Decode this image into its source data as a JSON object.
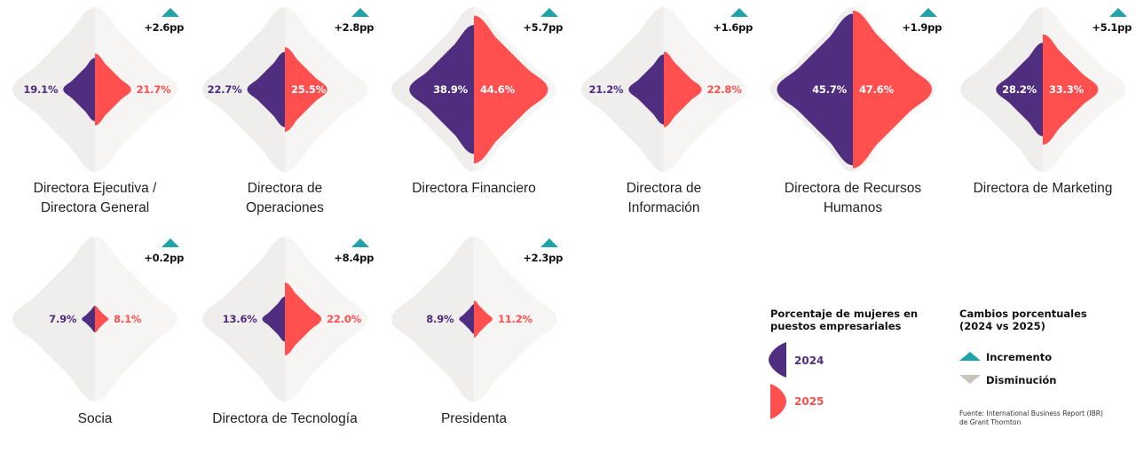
{
  "colors": {
    "y2024": "#4f2d7f",
    "y2025": "#ff4f4f",
    "increase": "#1fa3a8",
    "decrease": "#c9c3bd",
    "bg_left": "#efeeed",
    "bg_right": "#f6f5f4"
  },
  "chart_data": {
    "type": "paired-shape",
    "unit": "%",
    "series": [
      {
        "name": "2024"
      },
      {
        "name": "2025"
      }
    ],
    "categories": [
      {
        "title": "Directora Ejecutiva / Directora General",
        "lines": [
          "Directora Ejecutiva /",
          "Directora General"
        ],
        "v2024": 19.1,
        "v2025": 21.7,
        "v2024_label": "19.1%",
        "v2025_label": "21.7%",
        "change": "+2.6pp",
        "direction": "increase"
      },
      {
        "title": "Directora de Operaciones",
        "lines": [
          "Directora de",
          "Operaciones"
        ],
        "v2024": 22.7,
        "v2025": 25.5,
        "v2024_label": "22.7%",
        "v2025_label": "25.5%",
        "change": "+2.8pp",
        "direction": "increase"
      },
      {
        "title": "Directora Financiero",
        "lines": [
          "Directora Financiero"
        ],
        "v2024": 38.9,
        "v2025": 44.6,
        "v2024_label": "38.9%",
        "v2025_label": "44.6%",
        "change": "+5.7pp",
        "direction": "increase"
      },
      {
        "title": "Directora de Información",
        "lines": [
          "Directora de",
          "Información"
        ],
        "v2024": 21.2,
        "v2025": 22.8,
        "v2024_label": "21.2%",
        "v2025_label": "22.8%",
        "change": "+1.6pp",
        "direction": "increase"
      },
      {
        "title": "Directora de Recursos Humanos",
        "lines": [
          "Directora de Recursos",
          "Humanos"
        ],
        "v2024": 45.7,
        "v2025": 47.6,
        "v2024_label": "45.7%",
        "v2025_label": "47.6%",
        "change": "+1.9pp",
        "direction": "increase"
      },
      {
        "title": "Directora de Marketing",
        "lines": [
          "Directora de Marketing"
        ],
        "v2024": 28.2,
        "v2025": 33.3,
        "v2024_label": "28.2%",
        "v2025_label": "33.3%",
        "change": "+5.1pp",
        "direction": "increase"
      },
      {
        "title": "Socia",
        "lines": [
          "Socia"
        ],
        "v2024": 7.9,
        "v2025": 8.1,
        "v2024_label": "7.9%",
        "v2025_label": "8.1%",
        "change": "+0.2pp",
        "direction": "increase"
      },
      {
        "title": "Directora de Tecnología",
        "lines": [
          "Directora de Tecnología"
        ],
        "v2024": 13.6,
        "v2025": 22.0,
        "v2024_label": "13.6%",
        "v2025_label": "22.0%",
        "change": "+8.4pp",
        "direction": "increase"
      },
      {
        "title": "Presidenta",
        "lines": [
          "Presidenta"
        ],
        "v2024": 8.9,
        "v2025": 11.2,
        "v2024_label": "8.9%",
        "v2025_label": "11.2%",
        "change": "+2.3pp",
        "direction": "increase"
      }
    ]
  },
  "legend": {
    "shares_title_1": "Porcentaje de mujeres en",
    "shares_title_2": "puestos empresariales",
    "y2024": "2024",
    "y2025": "2025",
    "changes_title_1": "Cambios porcentuales",
    "changes_title_2": "(2024 vs 2025)",
    "increase": "Incremento",
    "decrease": "Disminución"
  },
  "source": {
    "line1": "Fuente: International Business Report (IBR)",
    "line2": "de Grant Thornton"
  }
}
